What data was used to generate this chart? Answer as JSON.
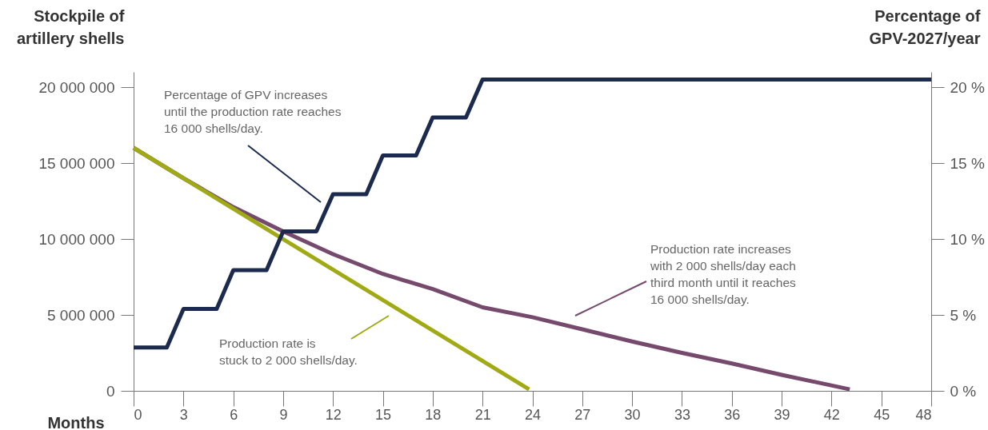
{
  "chart_data": {
    "type": "line",
    "xlabel": "Months",
    "ylabel": "Stockpile of\nartillery shells",
    "y2label": "Percentage of\nGPV-2027/year",
    "xlim": [
      0,
      48
    ],
    "xticks": [
      0,
      3,
      6,
      9,
      12,
      15,
      18,
      21,
      24,
      27,
      30,
      33,
      36,
      39,
      42,
      45,
      48
    ],
    "ylim": [
      0,
      21000000
    ],
    "yticks": [
      {
        "value": 0,
        "label": "0"
      },
      {
        "value": 5000000,
        "label": "5 000 000"
      },
      {
        "value": 10000000,
        "label": "10 000 000"
      },
      {
        "value": 15000000,
        "label": "15 000 000"
      },
      {
        "value": 20000000,
        "label": "20 000 000"
      }
    ],
    "y2lim": [
      0,
      21
    ],
    "y2ticks": [
      {
        "value": 0,
        "label": "0 %"
      },
      {
        "value": 5,
        "label": "5 %"
      },
      {
        "value": 10,
        "label": "10 %"
      },
      {
        "value": 15,
        "label": "15 %"
      },
      {
        "value": 20,
        "label": "20 %"
      }
    ],
    "series": [
      {
        "color": "#1c2a4e",
        "axis": "y2",
        "x": [
          0,
          2,
          3,
          5,
          6,
          8,
          9,
          11,
          12,
          14,
          15,
          17,
          18,
          20,
          21,
          48
        ],
        "values": [
          2.85,
          2.85,
          5.4,
          5.4,
          7.95,
          7.95,
          10.5,
          10.5,
          12.95,
          12.95,
          15.5,
          15.5,
          18.0,
          18.0,
          20.5,
          20.5
        ]
      },
      {
        "color": "#764a6c",
        "x": [
          0,
          3,
          6,
          9,
          12,
          15,
          18,
          21,
          24,
          27,
          30,
          33,
          36,
          39,
          43.1
        ],
        "values": [
          16000000,
          14000000,
          12100000,
          10500000,
          9000000,
          7700000,
          6700000,
          5500000,
          4850000,
          4050000,
          3250000,
          2500000,
          1800000,
          1050000,
          100000
        ]
      },
      {
        "color": "#a0aa14",
        "x": [
          0,
          23.8
        ],
        "values": [
          16000000,
          100000
        ]
      }
    ],
    "annotations": [
      "Percentage of GPV increases\nuntil the production rate reaches\n16 000 shells/day.",
      "Production rate increases\nwith 2 000 shells/day each\nthird month until it reaches\n16 000 shells/day.",
      "Production rate is\nstuck to 2 000 shells/day."
    ]
  }
}
